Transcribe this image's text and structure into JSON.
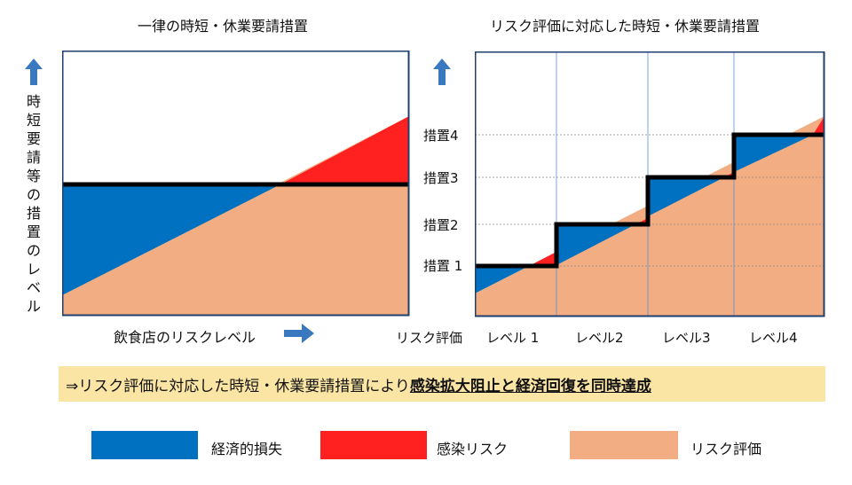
{
  "left_panel": {
    "title": "一律の時短・休業要請措置",
    "y_label": "時短要請等の措置のレベル",
    "x_label": "飲食店のリスクレベル"
  },
  "right_panel": {
    "title": "リスク評価に対応した時短・休業要請措置",
    "y_ticks": [
      "措置4",
      "措置3",
      "措置2",
      "措置 1"
    ],
    "x_axis_label": "リスク評価",
    "x_ticks": [
      "レベル 1",
      "レベル2",
      "レベル3",
      "レベル4"
    ]
  },
  "banner": {
    "prefix": "⇒リスク評価に対応した時短・休業要請措置により",
    "emphasis": "感染拡大阻止と経済回復を同時達成"
  },
  "legend": [
    {
      "label": "経済的損失",
      "color": "#0070c0"
    },
    {
      "label": "感染リスク",
      "color": "#ff2020"
    },
    {
      "label": "リスク評価",
      "color": "#f2ae82"
    }
  ],
  "colors": {
    "economic_loss": "#0070c0",
    "infection_risk": "#ff2020",
    "risk_assessment": "#f2ae82",
    "frame": "#1f3f6e",
    "arrow": "#3a78c0",
    "banner_bg": "#fbe5a5"
  }
}
